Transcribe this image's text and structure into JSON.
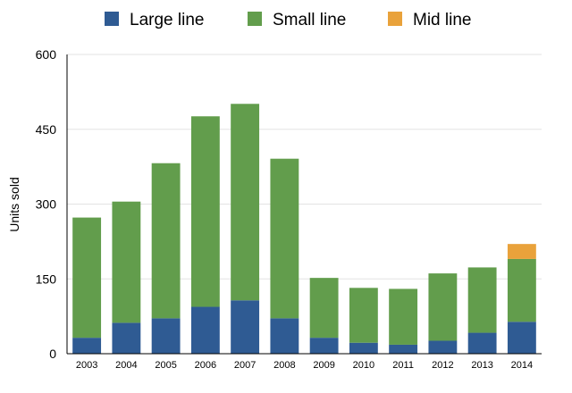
{
  "chart_data": {
    "type": "bar",
    "stacked": true,
    "title": "",
    "xlabel": "",
    "ylabel": "Units sold",
    "ylim": [
      0,
      600
    ],
    "yticks": [
      0,
      150,
      300,
      450,
      600
    ],
    "categories": [
      "2003",
      "2004",
      "2005",
      "2006",
      "2007",
      "2008",
      "2009",
      "2010",
      "2011",
      "2012",
      "2013",
      "2014"
    ],
    "series": [
      {
        "name": "Large line",
        "color": "#2f5b93",
        "values": [
          32,
          62,
          71,
          94,
          107,
          71,
          32,
          22,
          18,
          26,
          42,
          64
        ]
      },
      {
        "name": "Small line",
        "color": "#629d4c",
        "values": [
          241,
          243,
          311,
          382,
          394,
          320,
          120,
          110,
          112,
          135,
          131,
          126
        ]
      },
      {
        "name": "Mid line",
        "color": "#e9a23b",
        "values": [
          0,
          0,
          0,
          0,
          0,
          0,
          0,
          0,
          0,
          0,
          0,
          30
        ]
      }
    ],
    "legend_position": "top",
    "grid": true
  }
}
